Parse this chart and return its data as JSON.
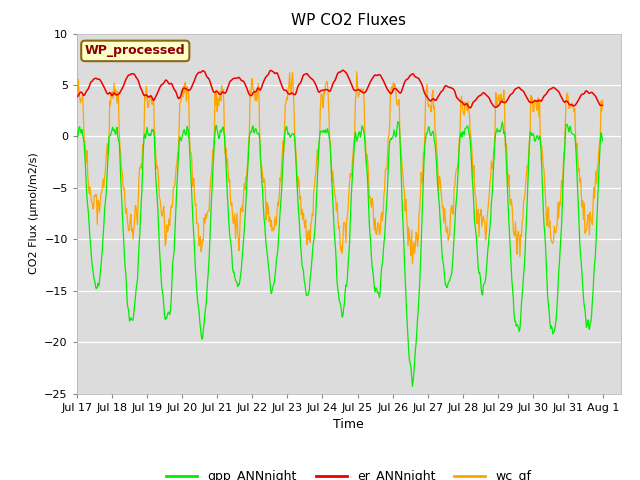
{
  "title": "WP CO2 Fluxes",
  "xlabel": "Time",
  "ylabel": "CO2 Flux (μmol/m2/s)",
  "ylim": [
    -25,
    10
  ],
  "yticks": [
    -25,
    -20,
    -15,
    -10,
    -5,
    0,
    5,
    10
  ],
  "annotation_text": "WP_processed",
  "annotation_color": "#8B0000",
  "annotation_bg": "#FFFFCC",
  "annotation_border": "#8B6914",
  "gpp_color": "#00EE00",
  "er_color": "#EE0000",
  "wc_color": "#FFA500",
  "legend_labels": [
    "gpp_ANNnight",
    "er_ANNnight",
    "wc_gf"
  ],
  "bg_color": "#DCDCDC",
  "grid_color": "#FFFFFF",
  "n_days": 15,
  "points_per_day": 48
}
